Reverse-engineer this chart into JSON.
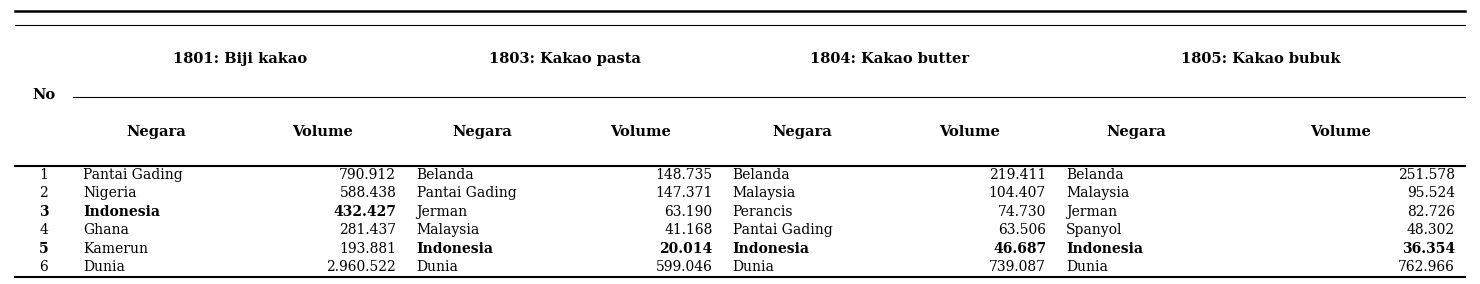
{
  "group_headers": [
    "1801: Biji kakao",
    "1803: Kakao pasta",
    "1804: Kakao butter",
    "1805: Kakao bubuk"
  ],
  "col_headers": [
    "Negara",
    "Volume",
    "Negara",
    "Volume",
    "Negara",
    "Volume",
    "Negara",
    "Volume"
  ],
  "rows": [
    [
      "1",
      "Pantai Gading",
      "790.912",
      "Belanda",
      "148.735",
      "Belanda",
      "219.411",
      "Belanda",
      "251.578"
    ],
    [
      "2",
      "Nigeria",
      "588.438",
      "Pantai Gading",
      "147.371",
      "Malaysia",
      "104.407",
      "Malaysia",
      "95.524"
    ],
    [
      "3",
      "Indonesia",
      "432.427",
      "Jerman",
      "63.190",
      "Perancis",
      "74.730",
      "Jerman",
      "82.726"
    ],
    [
      "4",
      "Ghana",
      "281.437",
      "Malaysia",
      "41.168",
      "Pantai Gading",
      "63.506",
      "Spanyol",
      "48.302"
    ],
    [
      "5",
      "Kamerun",
      "193.881",
      "Indonesia",
      "20.014",
      "Indonesia",
      "46.687",
      "Indonesia",
      "36.354"
    ],
    [
      "6",
      "Dunia",
      "2.960.522",
      "Dunia",
      "599.046",
      "Dunia",
      "739.087",
      "Dunia",
      "762.966"
    ]
  ],
  "bold_cells": {
    "2": [
      0,
      1,
      2
    ],
    "4": [
      0,
      3,
      4,
      5,
      6,
      7,
      8
    ]
  },
  "figsize": [
    14.8,
    2.84
  ],
  "dpi": 100,
  "background_color": "#ffffff",
  "font_size": 10.0,
  "header_font_size": 10.5
}
